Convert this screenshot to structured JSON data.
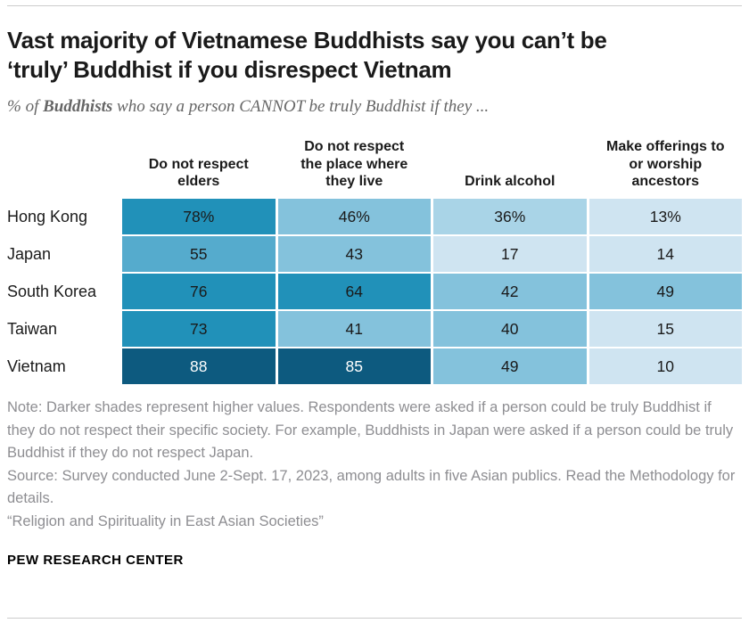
{
  "header": {
    "title": "Vast majority of Vietnamese Buddhists say you can’t be ‘truly’ Buddhist if you disrespect Vietnam",
    "subtitle_prefix": "% of ",
    "subtitle_bold": "Buddhists",
    "subtitle_suffix": " who say a person CANNOT be truly Buddhist if they ..."
  },
  "chart_data": {
    "type": "heatmap",
    "title": "Vast majority of Vietnamese Buddhists say you can’t be ‘truly’ Buddhist if you disrespect Vietnam",
    "subtitle": "% of Buddhists who say a person CANNOT be truly Buddhist if they ...",
    "value_unit": "%",
    "legend": "none",
    "columns": [
      "Do not respect elders",
      "Do not respect the place where they live",
      "Drink alcohol",
      "Make offerings to or worship ancestors"
    ],
    "rows": [
      {
        "label": "Hong Kong",
        "values": [
          78,
          46,
          36,
          13
        ],
        "display": [
          "78%",
          "46%",
          "36%",
          "13%"
        ]
      },
      {
        "label": "Japan",
        "values": [
          55,
          43,
          17,
          14
        ],
        "display": [
          "55",
          "43",
          "17",
          "14"
        ]
      },
      {
        "label": "South Korea",
        "values": [
          76,
          64,
          42,
          49
        ],
        "display": [
          "76",
          "64",
          "42",
          "49"
        ]
      },
      {
        "label": "Taiwan",
        "values": [
          73,
          41,
          40,
          15
        ],
        "display": [
          "73",
          "41",
          "40",
          "15"
        ]
      },
      {
        "label": "Vietnam",
        "values": [
          88,
          85,
          49,
          10
        ],
        "display": [
          "88",
          "85",
          "49",
          "10"
        ]
      }
    ],
    "color_scale": [
      {
        "min": 80,
        "bg": "#0d5a7f",
        "text": "#ffffff"
      },
      {
        "min": 60,
        "bg": "#2191b9",
        "text": "#1a1a1a"
      },
      {
        "min": 50,
        "bg": "#55abcd",
        "text": "#1a1a1a"
      },
      {
        "min": 40,
        "bg": "#84c2dc",
        "text": "#1a1a1a"
      },
      {
        "min": 30,
        "bg": "#a9d4e7",
        "text": "#1a1a1a"
      },
      {
        "min": 0,
        "bg": "#cfe4f1",
        "text": "#1a1a1a"
      }
    ]
  },
  "footer": {
    "note": "Note: Darker shades represent higher values. Respondents were asked if a person could be truly Buddhist if they do not respect their specific society. For example, Buddhists in Japan were asked if a person could be truly Buddhist if they do not respect Japan.",
    "source": "Source: Survey conducted June 2-Sept. 17, 2023, among adults in five Asian publics. Read the Methodology for details.",
    "report_title": "“Religion and Spirituality in East Asian Societies”",
    "brand": "PEW RESEARCH CENTER"
  }
}
